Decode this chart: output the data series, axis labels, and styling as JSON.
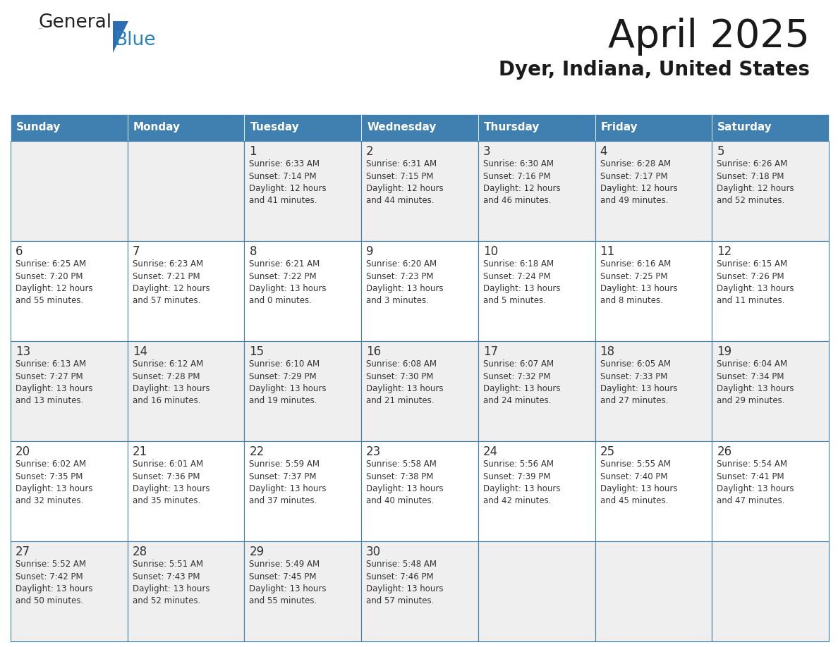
{
  "title": "April 2025",
  "subtitle": "Dyer, Indiana, United States",
  "days_of_week": [
    "Sunday",
    "Monday",
    "Tuesday",
    "Wednesday",
    "Thursday",
    "Friday",
    "Saturday"
  ],
  "header_bg": "#4080B0",
  "header_text": "#FFFFFF",
  "cell_bg_even": "#EFEFEF",
  "cell_bg_odd": "#FFFFFF",
  "cell_border": "#4080B0",
  "day_number_color": "#333333",
  "text_color": "#333333",
  "logo_color1": "#222222",
  "logo_color2": "#2980B9",
  "logo_triangle_color": "#2E6DB4",
  "calendar_data": [
    [
      {
        "day": "",
        "info": ""
      },
      {
        "day": "",
        "info": ""
      },
      {
        "day": "1",
        "info": "Sunrise: 6:33 AM\nSunset: 7:14 PM\nDaylight: 12 hours\nand 41 minutes."
      },
      {
        "day": "2",
        "info": "Sunrise: 6:31 AM\nSunset: 7:15 PM\nDaylight: 12 hours\nand 44 minutes."
      },
      {
        "day": "3",
        "info": "Sunrise: 6:30 AM\nSunset: 7:16 PM\nDaylight: 12 hours\nand 46 minutes."
      },
      {
        "day": "4",
        "info": "Sunrise: 6:28 AM\nSunset: 7:17 PM\nDaylight: 12 hours\nand 49 minutes."
      },
      {
        "day": "5",
        "info": "Sunrise: 6:26 AM\nSunset: 7:18 PM\nDaylight: 12 hours\nand 52 minutes."
      }
    ],
    [
      {
        "day": "6",
        "info": "Sunrise: 6:25 AM\nSunset: 7:20 PM\nDaylight: 12 hours\nand 55 minutes."
      },
      {
        "day": "7",
        "info": "Sunrise: 6:23 AM\nSunset: 7:21 PM\nDaylight: 12 hours\nand 57 minutes."
      },
      {
        "day": "8",
        "info": "Sunrise: 6:21 AM\nSunset: 7:22 PM\nDaylight: 13 hours\nand 0 minutes."
      },
      {
        "day": "9",
        "info": "Sunrise: 6:20 AM\nSunset: 7:23 PM\nDaylight: 13 hours\nand 3 minutes."
      },
      {
        "day": "10",
        "info": "Sunrise: 6:18 AM\nSunset: 7:24 PM\nDaylight: 13 hours\nand 5 minutes."
      },
      {
        "day": "11",
        "info": "Sunrise: 6:16 AM\nSunset: 7:25 PM\nDaylight: 13 hours\nand 8 minutes."
      },
      {
        "day": "12",
        "info": "Sunrise: 6:15 AM\nSunset: 7:26 PM\nDaylight: 13 hours\nand 11 minutes."
      }
    ],
    [
      {
        "day": "13",
        "info": "Sunrise: 6:13 AM\nSunset: 7:27 PM\nDaylight: 13 hours\nand 13 minutes."
      },
      {
        "day": "14",
        "info": "Sunrise: 6:12 AM\nSunset: 7:28 PM\nDaylight: 13 hours\nand 16 minutes."
      },
      {
        "day": "15",
        "info": "Sunrise: 6:10 AM\nSunset: 7:29 PM\nDaylight: 13 hours\nand 19 minutes."
      },
      {
        "day": "16",
        "info": "Sunrise: 6:08 AM\nSunset: 7:30 PM\nDaylight: 13 hours\nand 21 minutes."
      },
      {
        "day": "17",
        "info": "Sunrise: 6:07 AM\nSunset: 7:32 PM\nDaylight: 13 hours\nand 24 minutes."
      },
      {
        "day": "18",
        "info": "Sunrise: 6:05 AM\nSunset: 7:33 PM\nDaylight: 13 hours\nand 27 minutes."
      },
      {
        "day": "19",
        "info": "Sunrise: 6:04 AM\nSunset: 7:34 PM\nDaylight: 13 hours\nand 29 minutes."
      }
    ],
    [
      {
        "day": "20",
        "info": "Sunrise: 6:02 AM\nSunset: 7:35 PM\nDaylight: 13 hours\nand 32 minutes."
      },
      {
        "day": "21",
        "info": "Sunrise: 6:01 AM\nSunset: 7:36 PM\nDaylight: 13 hours\nand 35 minutes."
      },
      {
        "day": "22",
        "info": "Sunrise: 5:59 AM\nSunset: 7:37 PM\nDaylight: 13 hours\nand 37 minutes."
      },
      {
        "day": "23",
        "info": "Sunrise: 5:58 AM\nSunset: 7:38 PM\nDaylight: 13 hours\nand 40 minutes."
      },
      {
        "day": "24",
        "info": "Sunrise: 5:56 AM\nSunset: 7:39 PM\nDaylight: 13 hours\nand 42 minutes."
      },
      {
        "day": "25",
        "info": "Sunrise: 5:55 AM\nSunset: 7:40 PM\nDaylight: 13 hours\nand 45 minutes."
      },
      {
        "day": "26",
        "info": "Sunrise: 5:54 AM\nSunset: 7:41 PM\nDaylight: 13 hours\nand 47 minutes."
      }
    ],
    [
      {
        "day": "27",
        "info": "Sunrise: 5:52 AM\nSunset: 7:42 PM\nDaylight: 13 hours\nand 50 minutes."
      },
      {
        "day": "28",
        "info": "Sunrise: 5:51 AM\nSunset: 7:43 PM\nDaylight: 13 hours\nand 52 minutes."
      },
      {
        "day": "29",
        "info": "Sunrise: 5:49 AM\nSunset: 7:45 PM\nDaylight: 13 hours\nand 55 minutes."
      },
      {
        "day": "30",
        "info": "Sunrise: 5:48 AM\nSunset: 7:46 PM\nDaylight: 13 hours\nand 57 minutes."
      },
      {
        "day": "",
        "info": ""
      },
      {
        "day": "",
        "info": ""
      },
      {
        "day": "",
        "info": ""
      }
    ]
  ]
}
